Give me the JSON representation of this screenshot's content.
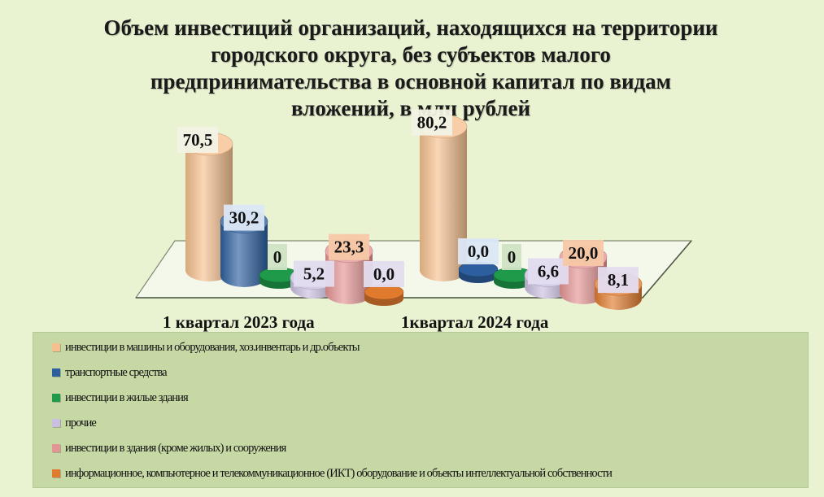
{
  "chart_data": {
    "type": "bar",
    "title": "Объем инвестиций организаций, находящихся на территории\nгородского округа, без субъектов малого\nпредпринимательства  в основной капитал  по видам\nвложений, в млн рублей",
    "categories": [
      "1 квартал 2023 года",
      "1квартал 2024 года"
    ],
    "series": [
      {
        "name": "инвестиции в машины и оборудования, хоз.инвентарь и др.объекты",
        "color": "#f5c08e",
        "values": [
          70.5,
          80.2
        ],
        "labels": [
          "70,5",
          "80,2"
        ]
      },
      {
        "name": "транспортные средства",
        "color": "#2d5f9e",
        "values": [
          30.2,
          0.0
        ],
        "labels": [
          "30,2",
          "0,0"
        ]
      },
      {
        "name": "инвестиции в жилые здания",
        "color": "#1f9a4a",
        "values": [
          0,
          0
        ],
        "labels": [
          "0",
          "0"
        ]
      },
      {
        "name": "прочие",
        "color": "#c9bfe0",
        "values": [
          5.2,
          6.6
        ],
        "labels": [
          "5,2",
          "6,6"
        ]
      },
      {
        "name": "инвестиции в здания (кроме жилых) и сооружения",
        "color": "#e39594",
        "values": [
          23.3,
          20.0
        ],
        "labels": [
          "23,3",
          "20,0"
        ]
      },
      {
        "name": "информационное, компьютерное и телекоммуникационное (ИКТ) оборудование и объекты интеллектуальной собственности",
        "color": "#e07b2e",
        "values": [
          0.0,
          8.1
        ],
        "labels": [
          "0,0",
          "8,1"
        ]
      }
    ],
    "legend_position": "bottom",
    "grid": false,
    "shape": "3d-cylinder"
  }
}
